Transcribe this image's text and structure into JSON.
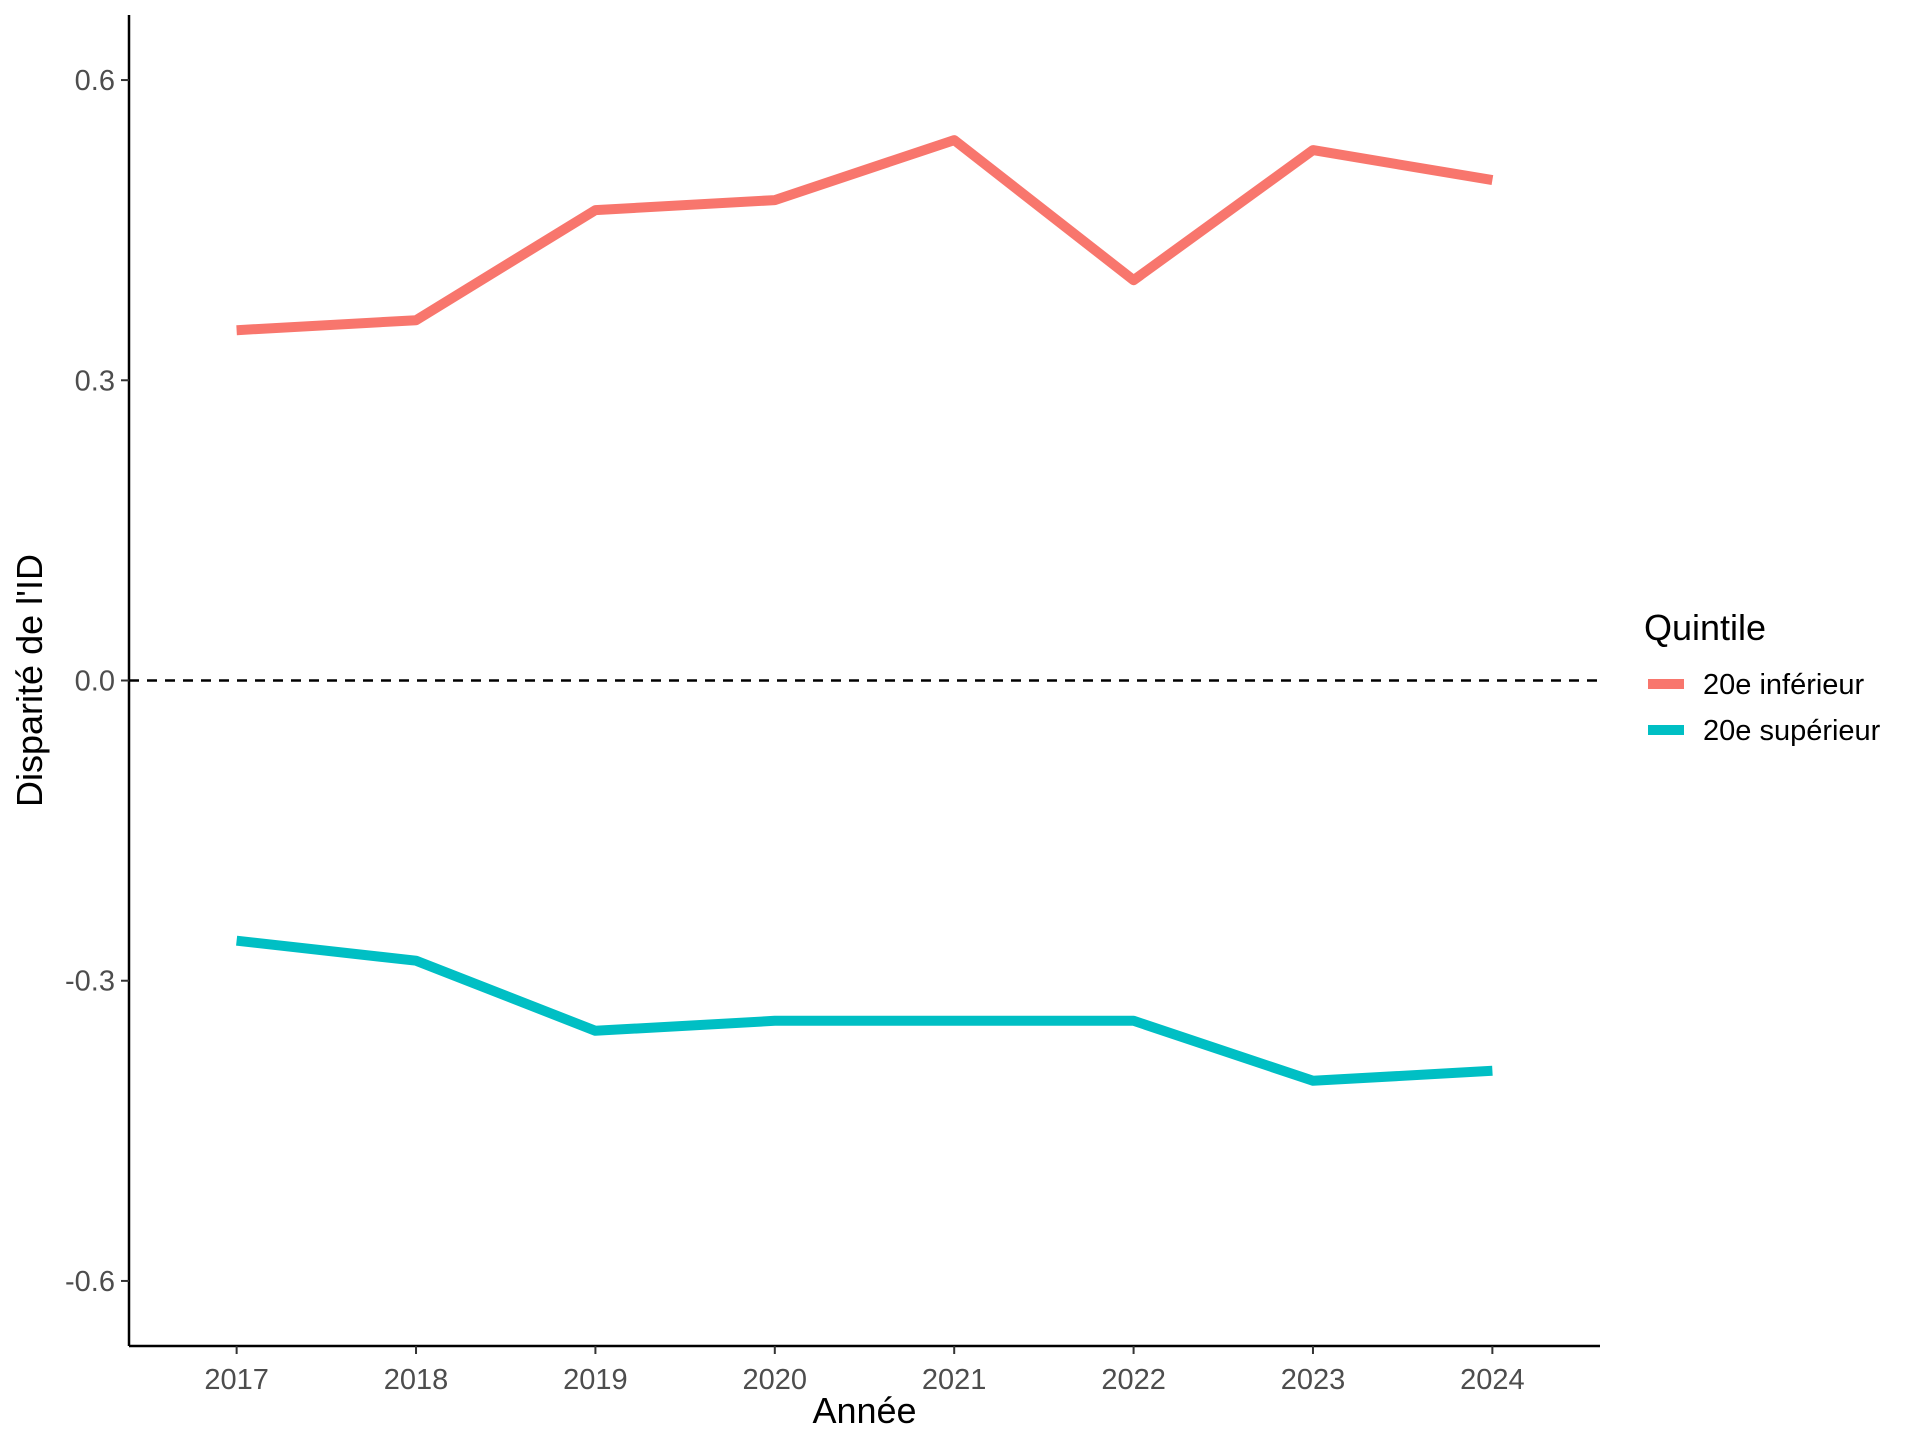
{
  "chart_data": {
    "type": "line",
    "xlabel": "Année",
    "ylabel": "Disparité de l'ID",
    "x": [
      2017,
      2018,
      2019,
      2020,
      2021,
      2022,
      2023,
      2024
    ],
    "xticks": [
      "2017",
      "2018",
      "2019",
      "2020",
      "2021",
      "2022",
      "2023",
      "2024"
    ],
    "xlim": [
      2016.4,
      2024.6
    ],
    "ylim": [
      -0.665,
      0.665
    ],
    "yticks": [
      0.6,
      0.3,
      0.0,
      -0.3,
      -0.6
    ],
    "ytick_labels": [
      "0.6",
      "0.3",
      "0.0",
      "-0.3",
      "-0.6"
    ],
    "reference_line": {
      "y": 0.0,
      "style": "dashed",
      "color": "#000000"
    },
    "legend": {
      "title": "Quintile",
      "position": "right"
    },
    "grid": false,
    "series": [
      {
        "name": "20e inférieur",
        "color": "#F8766D",
        "values": [
          0.35,
          0.36,
          0.47,
          0.48,
          0.54,
          0.4,
          0.53,
          0.5
        ]
      },
      {
        "name": "20e supérieur",
        "color": "#00BFC4",
        "values": [
          -0.26,
          -0.28,
          -0.35,
          -0.34,
          -0.34,
          -0.34,
          -0.4,
          -0.39
        ]
      }
    ]
  }
}
